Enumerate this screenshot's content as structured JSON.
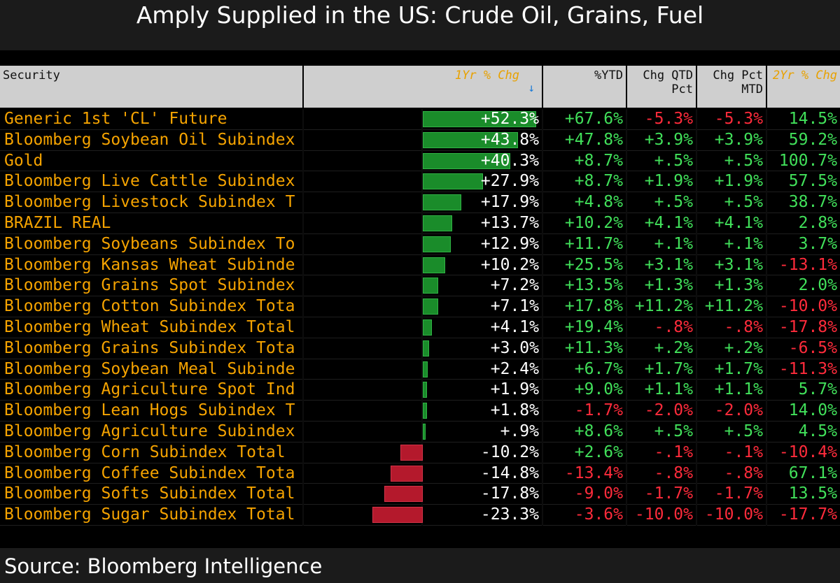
{
  "title": "Amply Supplied in the US: Crude Oil, Grains, Fuel",
  "footer": "Source: Bloomberg Intelligence",
  "headers": {
    "security": "Security",
    "one_yr": "1Yr % Chg",
    "ytd": "%YTD",
    "qtd_line1": "Chg QTD",
    "qtd_line2": "Pct",
    "mtd_line1": "Chg Pct",
    "mtd_line2": "MTD",
    "two_yr": "2Yr % Chg",
    "sort_icon": "arrow-down-icon"
  },
  "colors": {
    "positive": "#41e05a",
    "negative": "#ff2b3b",
    "security_text": "#f5a300",
    "bar_positive": "#1a8c2a",
    "bar_negative": "#b4192c"
  },
  "rows": [
    {
      "security": "Generic 1st 'CL' Future",
      "one_yr": "+52.3%",
      "one_yr_value": 52.3,
      "ytd": "+67.6%",
      "qtd": "-5.3%",
      "mtd": "-5.3%",
      "two_yr": "14.5%"
    },
    {
      "security": "Bloomberg Soybean Oil Subindex",
      "one_yr": "+43.8%",
      "one_yr_value": 43.8,
      "ytd": "+47.8%",
      "qtd": "+3.9%",
      "mtd": "+3.9%",
      "two_yr": "59.2%"
    },
    {
      "security": "Gold",
      "one_yr": "+40.3%",
      "one_yr_value": 40.3,
      "ytd": "+8.7%",
      "qtd": "+.5%",
      "mtd": "+.5%",
      "two_yr": "100.7%"
    },
    {
      "security": "Bloomberg Live Cattle Subindex",
      "one_yr": "+27.9%",
      "one_yr_value": 27.9,
      "ytd": "+8.7%",
      "qtd": "+1.9%",
      "mtd": "+1.9%",
      "two_yr": "57.5%"
    },
    {
      "security": "Bloomberg Livestock Subindex T",
      "one_yr": "+17.9%",
      "one_yr_value": 17.9,
      "ytd": "+4.8%",
      "qtd": "+.5%",
      "mtd": "+.5%",
      "two_yr": "38.7%"
    },
    {
      "security": "BRAZIL REAL",
      "one_yr": "+13.7%",
      "one_yr_value": 13.7,
      "ytd": "+10.2%",
      "qtd": "+4.1%",
      "mtd": "+4.1%",
      "two_yr": "2.8%"
    },
    {
      "security": "Bloomberg Soybeans Subindex To",
      "one_yr": "+12.9%",
      "one_yr_value": 12.9,
      "ytd": "+11.7%",
      "qtd": "+.1%",
      "mtd": "+.1%",
      "two_yr": "3.7%"
    },
    {
      "security": "Bloomberg Kansas Wheat Subinde",
      "one_yr": "+10.2%",
      "one_yr_value": 10.2,
      "ytd": "+25.5%",
      "qtd": "+3.1%",
      "mtd": "+3.1%",
      "two_yr": "-13.1%"
    },
    {
      "security": "Bloomberg Grains Spot Subindex",
      "one_yr": "+7.2%",
      "one_yr_value": 7.2,
      "ytd": "+13.5%",
      "qtd": "+1.3%",
      "mtd": "+1.3%",
      "two_yr": "2.0%"
    },
    {
      "security": "Bloomberg Cotton Subindex Tota",
      "one_yr": "+7.1%",
      "one_yr_value": 7.1,
      "ytd": "+17.8%",
      "qtd": "+11.2%",
      "mtd": "+11.2%",
      "two_yr": "-10.0%"
    },
    {
      "security": "Bloomberg Wheat Subindex Total",
      "one_yr": "+4.1%",
      "one_yr_value": 4.1,
      "ytd": "+19.4%",
      "qtd": "-.8%",
      "mtd": "-.8%",
      "two_yr": "-17.8%"
    },
    {
      "security": "Bloomberg Grains Subindex Tota",
      "one_yr": "+3.0%",
      "one_yr_value": 3.0,
      "ytd": "+11.3%",
      "qtd": "+.2%",
      "mtd": "+.2%",
      "two_yr": "-6.5%"
    },
    {
      "security": "Bloomberg Soybean Meal Subinde",
      "one_yr": "+2.4%",
      "one_yr_value": 2.4,
      "ytd": "+6.7%",
      "qtd": "+1.7%",
      "mtd": "+1.7%",
      "two_yr": "-11.3%"
    },
    {
      "security": "Bloomberg Agriculture Spot Ind",
      "one_yr": "+1.9%",
      "one_yr_value": 1.9,
      "ytd": "+9.0%",
      "qtd": "+1.1%",
      "mtd": "+1.1%",
      "two_yr": "5.7%"
    },
    {
      "security": "Bloomberg Lean Hogs Subindex T",
      "one_yr": "+1.8%",
      "one_yr_value": 1.8,
      "ytd": "-1.7%",
      "qtd": "-2.0%",
      "mtd": "-2.0%",
      "two_yr": "14.0%"
    },
    {
      "security": "Bloomberg Agriculture Subindex",
      "one_yr": "+.9%",
      "one_yr_value": 0.9,
      "ytd": "+8.6%",
      "qtd": "+.5%",
      "mtd": "+.5%",
      "two_yr": "4.5%"
    },
    {
      "security": "Bloomberg Corn Subindex Total",
      "one_yr": "-10.2%",
      "one_yr_value": -10.2,
      "ytd": "+2.6%",
      "qtd": "-.1%",
      "mtd": "-.1%",
      "two_yr": "-10.4%"
    },
    {
      "security": "Bloomberg Coffee Subindex Tota",
      "one_yr": "-14.8%",
      "one_yr_value": -14.8,
      "ytd": "-13.4%",
      "qtd": "-.8%",
      "mtd": "-.8%",
      "two_yr": "67.1%"
    },
    {
      "security": "Bloomberg Softs Subindex Total",
      "one_yr": "-17.8%",
      "one_yr_value": -17.8,
      "ytd": "-9.0%",
      "qtd": "-1.7%",
      "mtd": "-1.7%",
      "two_yr": "13.5%"
    },
    {
      "security": "Bloomberg Sugar Subindex Total",
      "one_yr": "-23.3%",
      "one_yr_value": -23.3,
      "ytd": "-3.6%",
      "qtd": "-10.0%",
      "mtd": "-10.0%",
      "two_yr": "-17.7%"
    }
  ]
}
